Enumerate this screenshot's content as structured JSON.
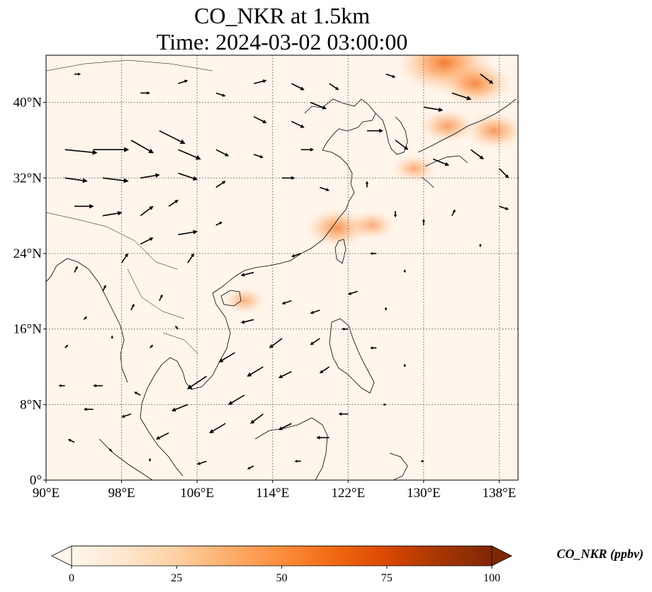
{
  "chart_data": {
    "type": "heatmap",
    "title": "CO_NKR at 1.5km",
    "subtitle": "Time: 2024-03-02 03:00:00",
    "xlim": [
      90,
      140
    ],
    "ylim": [
      0,
      45
    ],
    "x_ticks": [
      90,
      98,
      106,
      114,
      122,
      130,
      138
    ],
    "y_ticks": [
      0,
      8,
      16,
      24,
      32,
      40
    ],
    "x_tick_labels": [
      "90°E",
      "98°E",
      "106°E",
      "114°E",
      "122°E",
      "130°E",
      "138°E"
    ],
    "y_tick_labels": [
      "0°",
      "8°N",
      "16°N",
      "24°N",
      "32°N",
      "40°N"
    ],
    "grid": true,
    "colorbar": {
      "label": "CO_NKR (ppbv)",
      "min": 0,
      "max": 100,
      "ticks": [
        0,
        25,
        50,
        75,
        100
      ],
      "tick_labels": [
        "0",
        "25",
        "50",
        "75",
        "100"
      ],
      "colors": [
        "#fff5eb",
        "#fee6ce",
        "#fdd0a2",
        "#fdae6b",
        "#fd8d3c",
        "#f16913",
        "#d94801",
        "#a63603",
        "#7f2704"
      ],
      "extend": "both"
    },
    "hotspots": [
      {
        "lon": 132.2,
        "lat": 44.2,
        "value": 38
      },
      {
        "lon": 135.5,
        "lat": 42.0,
        "value": 26
      },
      {
        "lon": 132.5,
        "lat": 37.5,
        "value": 18
      },
      {
        "lon": 137.5,
        "lat": 37.0,
        "value": 20
      },
      {
        "lon": 120.8,
        "lat": 26.7,
        "value": 22
      },
      {
        "lon": 124.5,
        "lat": 27.0,
        "value": 14
      },
      {
        "lon": 111.0,
        "lat": 19.0,
        "value": 12
      },
      {
        "lon": 129.0,
        "lat": 33.0,
        "value": 13
      }
    ],
    "wind_vectors": [
      {
        "lon": 92,
        "lat": 35,
        "u": 10,
        "v": -1
      },
      {
        "lon": 95,
        "lat": 35,
        "u": 11,
        "v": 0
      },
      {
        "lon": 99,
        "lat": 36,
        "u": 7,
        "v": -4
      },
      {
        "lon": 102,
        "lat": 37,
        "u": 8,
        "v": -4
      },
      {
        "lon": 104,
        "lat": 35,
        "u": 7,
        "v": -3
      },
      {
        "lon": 108,
        "lat": 35,
        "u": 4,
        "v": -2
      },
      {
        "lon": 112,
        "lat": 34.5,
        "u": 3,
        "v": -1
      },
      {
        "lon": 117,
        "lat": 35,
        "u": 4,
        "v": 0
      },
      {
        "lon": 92,
        "lat": 32,
        "u": 7,
        "v": -1
      },
      {
        "lon": 96,
        "lat": 32,
        "u": 8,
        "v": -1
      },
      {
        "lon": 100,
        "lat": 32,
        "u": 6,
        "v": 1
      },
      {
        "lon": 104,
        "lat": 32.5,
        "u": 6,
        "v": -2
      },
      {
        "lon": 108,
        "lat": 31,
        "u": 3,
        "v": 2
      },
      {
        "lon": 93,
        "lat": 29,
        "u": 6,
        "v": 0
      },
      {
        "lon": 96,
        "lat": 28,
        "u": 6,
        "v": 1
      },
      {
        "lon": 100,
        "lat": 28,
        "u": 4,
        "v": 3
      },
      {
        "lon": 104,
        "lat": 26,
        "u": 6,
        "v": 1
      },
      {
        "lon": 103,
        "lat": 29,
        "u": 3,
        "v": 2
      },
      {
        "lon": 100,
        "lat": 25,
        "u": 4,
        "v": 2
      },
      {
        "lon": 98,
        "lat": 23,
        "u": 2,
        "v": 3
      },
      {
        "lon": 105,
        "lat": 23,
        "u": 2,
        "v": 3
      },
      {
        "lon": 108,
        "lat": 27,
        "u": 2,
        "v": 1
      },
      {
        "lon": 93,
        "lat": 43,
        "u": 2,
        "v": 0
      },
      {
        "lon": 100,
        "lat": 41,
        "u": 3,
        "v": 0
      },
      {
        "lon": 104,
        "lat": 42,
        "u": 3,
        "v": 1
      },
      {
        "lon": 108,
        "lat": 41,
        "u": 3,
        "v": -1
      },
      {
        "lon": 112,
        "lat": 42,
        "u": 4,
        "v": 1
      },
      {
        "lon": 116,
        "lat": 42,
        "u": 4,
        "v": -2
      },
      {
        "lon": 120,
        "lat": 42,
        "u": 3,
        "v": -2
      },
      {
        "lon": 118,
        "lat": 40,
        "u": 5,
        "v": -2
      },
      {
        "lon": 116,
        "lat": 38,
        "u": 4,
        "v": -2
      },
      {
        "lon": 112,
        "lat": 38.5,
        "u": 4,
        "v": -2
      },
      {
        "lon": 115,
        "lat": 32,
        "u": 4,
        "v": 0
      },
      {
        "lon": 119,
        "lat": 31,
        "u": 3,
        "v": -1
      },
      {
        "lon": 124,
        "lat": 37,
        "u": 5,
        "v": 0
      },
      {
        "lon": 127,
        "lat": 36,
        "u": 4,
        "v": -3
      },
      {
        "lon": 130,
        "lat": 39.5,
        "u": 6,
        "v": -1
      },
      {
        "lon": 133,
        "lat": 41,
        "u": 6,
        "v": -2
      },
      {
        "lon": 136,
        "lat": 43,
        "u": 4,
        "v": -3
      },
      {
        "lon": 126,
        "lat": 43,
        "u": 3,
        "v": -1
      },
      {
        "lon": 131,
        "lat": 34,
        "u": 5,
        "v": -2
      },
      {
        "lon": 135,
        "lat": 35,
        "u": 4,
        "v": -3
      },
      {
        "lon": 138,
        "lat": 33,
        "u": 3,
        "v": -3
      },
      {
        "lon": 138,
        "lat": 29,
        "u": 3,
        "v": -1
      },
      {
        "lon": 124,
        "lat": 31,
        "u": 0,
        "v": 2
      },
      {
        "lon": 127,
        "lat": 28.5,
        "u": 0,
        "v": -2
      },
      {
        "lon": 130,
        "lat": 27,
        "u": 0,
        "v": 2
      },
      {
        "lon": 133,
        "lat": 28,
        "u": 1,
        "v": 2
      },
      {
        "lon": 136,
        "lat": 25,
        "u": 0,
        "v": -1
      },
      {
        "lon": 125,
        "lat": 24,
        "u": -2,
        "v": 0
      },
      {
        "lon": 128,
        "lat": 22,
        "u": 0,
        "v": 1
      },
      {
        "lon": 123,
        "lat": 20,
        "u": -3,
        "v": -1
      },
      {
        "lon": 117,
        "lat": 24,
        "u": -3,
        "v": -1
      },
      {
        "lon": 112,
        "lat": 22,
        "u": -4,
        "v": -1
      },
      {
        "lon": 112,
        "lat": 17,
        "u": -4,
        "v": -1
      },
      {
        "lon": 116,
        "lat": 19,
        "u": -3,
        "v": -1
      },
      {
        "lon": 119,
        "lat": 18,
        "u": -3,
        "v": -1
      },
      {
        "lon": 115,
        "lat": 15,
        "u": -4,
        "v": -3
      },
      {
        "lon": 119,
        "lat": 15,
        "u": -3,
        "v": -2
      },
      {
        "lon": 110,
        "lat": 13.5,
        "u": -5,
        "v": -3
      },
      {
        "lon": 107,
        "lat": 11,
        "u": -6,
        "v": -4
      },
      {
        "lon": 113,
        "lat": 12,
        "u": -5,
        "v": -3
      },
      {
        "lon": 116,
        "lat": 11.5,
        "u": -4,
        "v": -2
      },
      {
        "lon": 120,
        "lat": 12,
        "u": -3,
        "v": -2
      },
      {
        "lon": 111,
        "lat": 9,
        "u": -5,
        "v": -3
      },
      {
        "lon": 105,
        "lat": 8,
        "u": -5,
        "v": -2
      },
      {
        "lon": 109,
        "lat": 6,
        "u": -5,
        "v": -3
      },
      {
        "lon": 113,
        "lat": 7,
        "u": -4,
        "v": -3
      },
      {
        "lon": 116,
        "lat": 6,
        "u": -4,
        "v": -2
      },
      {
        "lon": 120,
        "lat": 4.5,
        "u": -4,
        "v": 0
      },
      {
        "lon": 103,
        "lat": 5,
        "u": -4,
        "v": -2
      },
      {
        "lon": 99,
        "lat": 7,
        "u": -3,
        "v": -1
      },
      {
        "lon": 95,
        "lat": 7.5,
        "u": -3,
        "v": 0
      },
      {
        "lon": 92,
        "lat": 10,
        "u": -2,
        "v": 0
      },
      {
        "lon": 96,
        "lat": 10,
        "u": -3,
        "v": 0
      },
      {
        "lon": 100,
        "lat": 9,
        "u": -2,
        "v": 1
      },
      {
        "lon": 93,
        "lat": 4,
        "u": -2,
        "v": 1
      },
      {
        "lon": 97,
        "lat": 3,
        "u": -1,
        "v": 1
      },
      {
        "lon": 101,
        "lat": 2,
        "u": 0,
        "v": 1
      },
      {
        "lon": 107,
        "lat": 2,
        "u": -3,
        "v": -1
      },
      {
        "lon": 112,
        "lat": 1.5,
        "u": -2,
        "v": -1
      },
      {
        "lon": 117,
        "lat": 2,
        "u": -2,
        "v": 0
      },
      {
        "lon": 122,
        "lat": 7,
        "u": -3,
        "v": 0
      },
      {
        "lon": 126,
        "lat": 8,
        "u": -1,
        "v": 0
      },
      {
        "lon": 128,
        "lat": 12,
        "u": 0,
        "v": 1
      },
      {
        "lon": 125,
        "lat": 14,
        "u": -2,
        "v": 0
      },
      {
        "lon": 122,
        "lat": 16,
        "u": -2,
        "v": 0
      },
      {
        "lon": 126,
        "lat": 18,
        "u": 0,
        "v": 1
      },
      {
        "lon": 130,
        "lat": 2,
        "u": -1,
        "v": 0
      },
      {
        "lon": 93,
        "lat": 22,
        "u": 1,
        "v": 2
      },
      {
        "lon": 96,
        "lat": 20,
        "u": 1,
        "v": 2
      },
      {
        "lon": 99,
        "lat": 18,
        "u": 1,
        "v": 2
      },
      {
        "lon": 102,
        "lat": 19,
        "u": 1,
        "v": 2
      },
      {
        "lon": 104,
        "lat": 16,
        "u": -1,
        "v": 1
      },
      {
        "lon": 101,
        "lat": 14,
        "u": 1,
        "v": 1
      },
      {
        "lon": 97,
        "lat": 15,
        "u": 0,
        "v": 1
      },
      {
        "lon": 94,
        "lat": 17,
        "u": 1,
        "v": 1
      },
      {
        "lon": 92,
        "lat": 14,
        "u": 1,
        "v": 1
      }
    ]
  }
}
